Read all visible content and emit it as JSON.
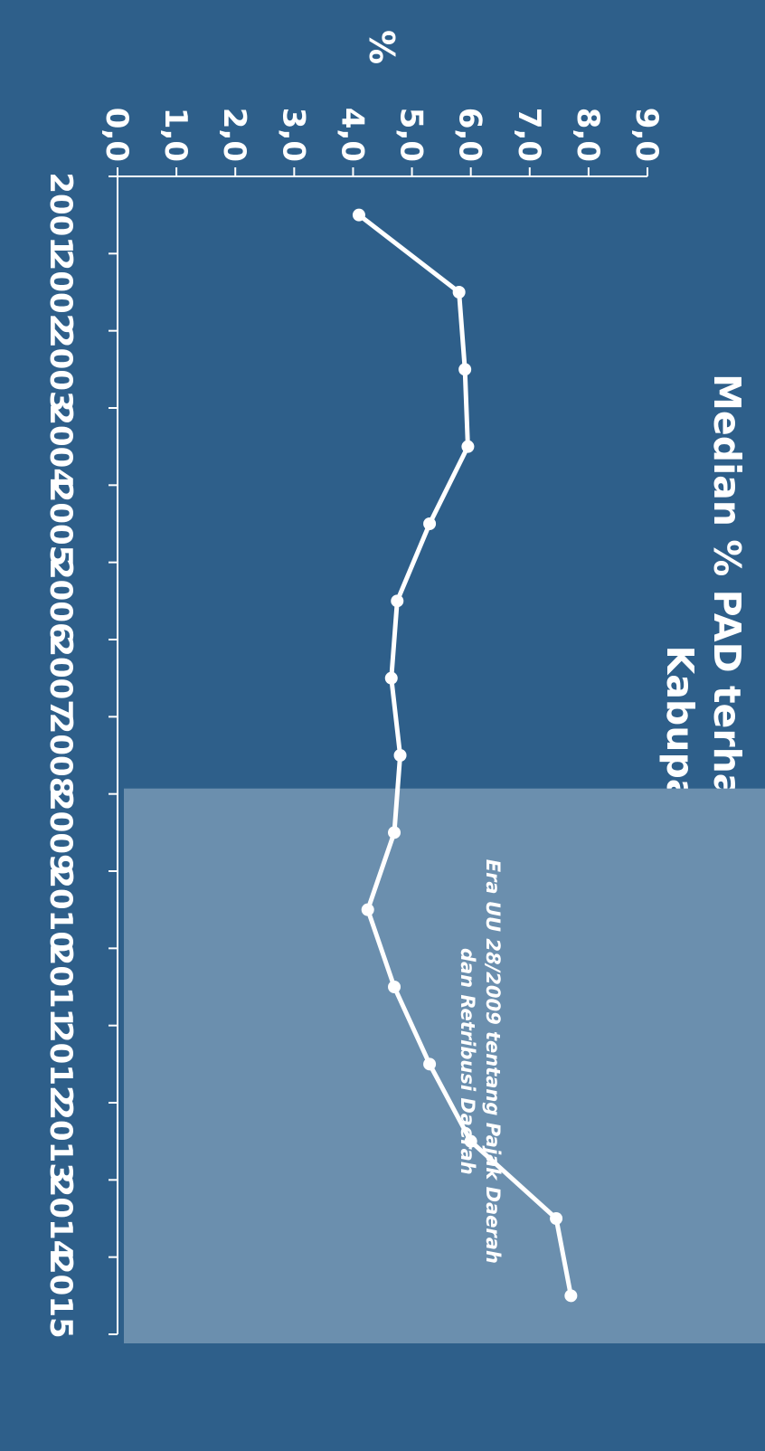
{
  "chart_data": {
    "type": "line",
    "title": "Median % PAD terhadap Total Pendapatan",
    "subtitle": "Kabupaten/Kota",
    "xlabel": "",
    "ylabel": "%",
    "categories": [
      "2001",
      "2002",
      "2003",
      "2004",
      "2005",
      "2006",
      "2007",
      "2008",
      "2009",
      "2010",
      "2011",
      "2012",
      "2013",
      "2014",
      "2015"
    ],
    "series": [
      {
        "values": [
          4.1,
          5.8,
          5.9,
          5.95,
          5.3,
          4.75,
          4.65,
          4.8,
          4.7,
          4.25,
          4.7,
          5.3,
          6.0,
          7.45,
          7.7
        ]
      }
    ],
    "ylim": [
      0,
      9
    ],
    "yticks": [
      "0,0",
      "1,0",
      "2,0",
      "3,0",
      "4,0",
      "5,0",
      "6,0",
      "7,0",
      "8,0",
      "9,0"
    ],
    "grid": false,
    "highlight": {
      "from": "2009",
      "to": "2015",
      "label_line1": "Era UU 28/2009 tentang Pajak  Daerah",
      "label_line2": "dan Retribusi Daerah"
    },
    "colors": {
      "background": "#2e5f8a",
      "highlight": "#6b8fae",
      "line": "#ffffff"
    }
  }
}
